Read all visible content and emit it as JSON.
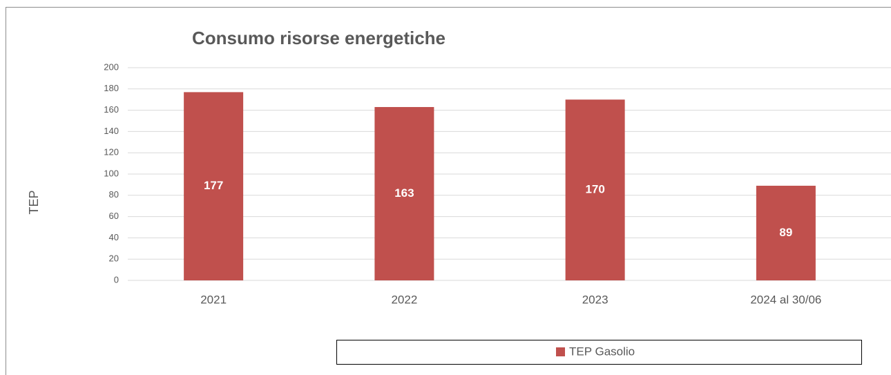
{
  "chart_data": {
    "type": "bar",
    "title": "Consumo risorse energetiche",
    "y_label": "TEP",
    "categories": [
      "2021",
      "2022",
      "2023",
      "2024 al 30/06"
    ],
    "series": [
      {
        "name": "TEP Gasolio",
        "color": "#c0504d",
        "values": [
          177,
          163,
          170,
          89
        ]
      }
    ],
    "ylim": [
      0,
      200
    ],
    "yticks": [
      0,
      20,
      40,
      60,
      80,
      100,
      120,
      140,
      160,
      180,
      200
    ],
    "grid": true,
    "legend": "bottom",
    "data_labels": true
  }
}
